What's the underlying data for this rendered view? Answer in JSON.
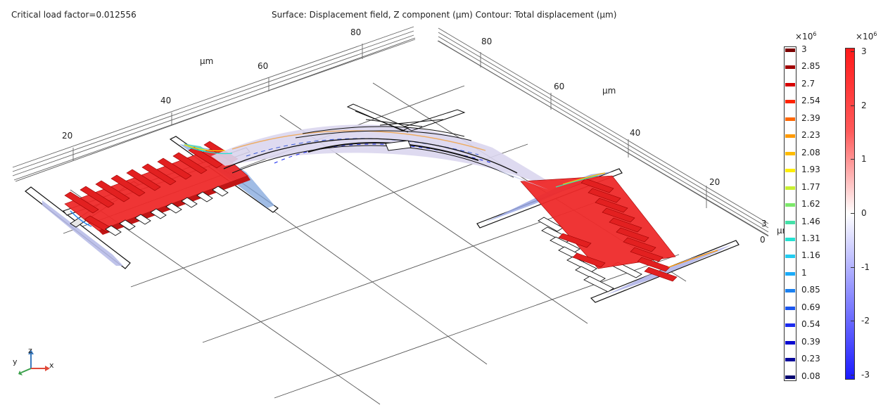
{
  "header": {
    "left_label": "Critical load factor=0.012556",
    "center_title": "Surface: Displacement field, Z component (µm)  Contour: Total displacement (µm)"
  },
  "axes": {
    "left_ticks": [
      "20",
      "40",
      "60",
      "80"
    ],
    "left_unit": "µm",
    "right_ticks": [
      "80",
      "60",
      "40",
      "20"
    ],
    "right_unit": "µm",
    "z_ticks": [
      "3",
      "0"
    ],
    "z_unit": "µm"
  },
  "triad": {
    "z": "z",
    "y": "y",
    "x": "x"
  },
  "contour_legend": {
    "multiplier": "×10",
    "exponent": "6",
    "levels": [
      {
        "label": "3",
        "color": "#7a0000"
      },
      {
        "label": "2.85",
        "color": "#a00000"
      },
      {
        "label": "2.7",
        "color": "#d60000"
      },
      {
        "label": "2.54",
        "color": "#ff2200"
      },
      {
        "label": "2.39",
        "color": "#ff6600"
      },
      {
        "label": "2.23",
        "color": "#ff9900"
      },
      {
        "label": "2.08",
        "color": "#ffbb00"
      },
      {
        "label": "1.93",
        "color": "#ffee00"
      },
      {
        "label": "1.77",
        "color": "#c8f032"
      },
      {
        "label": "1.62",
        "color": "#7ce86a"
      },
      {
        "label": "1.46",
        "color": "#44e0a8"
      },
      {
        "label": "1.31",
        "color": "#22e2d2"
      },
      {
        "label": "1.16",
        "color": "#22ccf0"
      },
      {
        "label": "1",
        "color": "#1aaaf8"
      },
      {
        "label": "0.85",
        "color": "#1a80f0"
      },
      {
        "label": "0.69",
        "color": "#1a55ee"
      },
      {
        "label": "0.54",
        "color": "#1a2aee"
      },
      {
        "label": "0.39",
        "color": "#0a0ad0"
      },
      {
        "label": "0.23",
        "color": "#06069a"
      },
      {
        "label": "0.08",
        "color": "#040470"
      }
    ]
  },
  "surface_legend": {
    "multiplier": "×10",
    "exponent": "6",
    "ticks": [
      "3",
      "2",
      "1",
      "0",
      "-1",
      "-2",
      "-3"
    ],
    "colors": {
      "max": "#ff1a1a",
      "mid": "#ffffff",
      "min": "#1a1aff"
    }
  }
}
